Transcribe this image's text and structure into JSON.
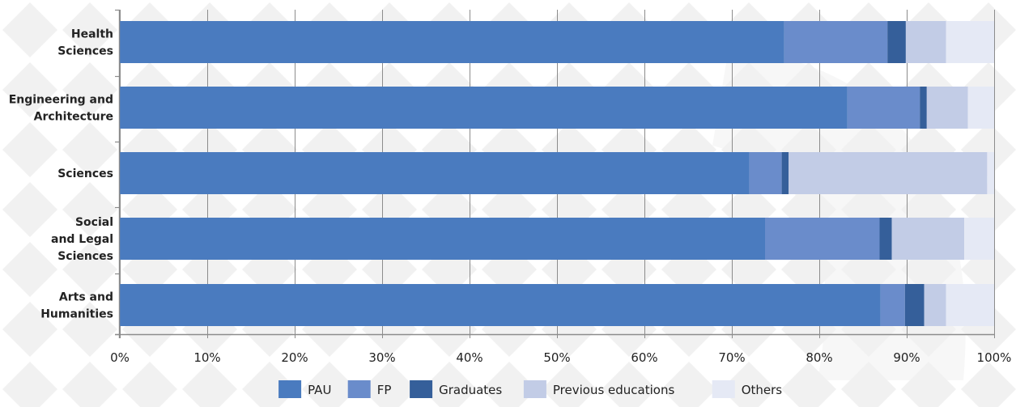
{
  "chart_data": {
    "type": "bar",
    "orientation": "horizontal",
    "stacked": true,
    "percent": true,
    "categories": [
      "Health\nSciences",
      "Engineering and\nArchitecture",
      "Sciences",
      "Social\nand Legal\nSciences",
      "Arts and\nHumanities"
    ],
    "series": [
      {
        "name": "PAU",
        "color": "#4a7bbf",
        "values": [
          76.0,
          83.2,
          72.0,
          73.8,
          87.0
        ]
      },
      {
        "name": "FP",
        "color": "#6a8ccb",
        "values": [
          11.8,
          8.3,
          3.7,
          13.1,
          2.8
        ]
      },
      {
        "name": "Graduates",
        "color": "#355f9a",
        "values": [
          2.1,
          0.8,
          0.8,
          1.4,
          2.2
        ]
      },
      {
        "name": "Previous educations",
        "color": "#c2cce6",
        "values": [
          4.6,
          4.7,
          22.7,
          8.3,
          2.5
        ]
      },
      {
        "name": "Others",
        "color": "#e5e9f5",
        "values": [
          5.5,
          3.0,
          0.8,
          3.4,
          5.5
        ]
      }
    ],
    "x_ticks": [
      "0%",
      "10%",
      "20%",
      "30%",
      "40%",
      "50%",
      "60%",
      "70%",
      "80%",
      "90%",
      "100%"
    ],
    "xlim": [
      0,
      100
    ],
    "grid": true,
    "legend_position": "bottom"
  }
}
